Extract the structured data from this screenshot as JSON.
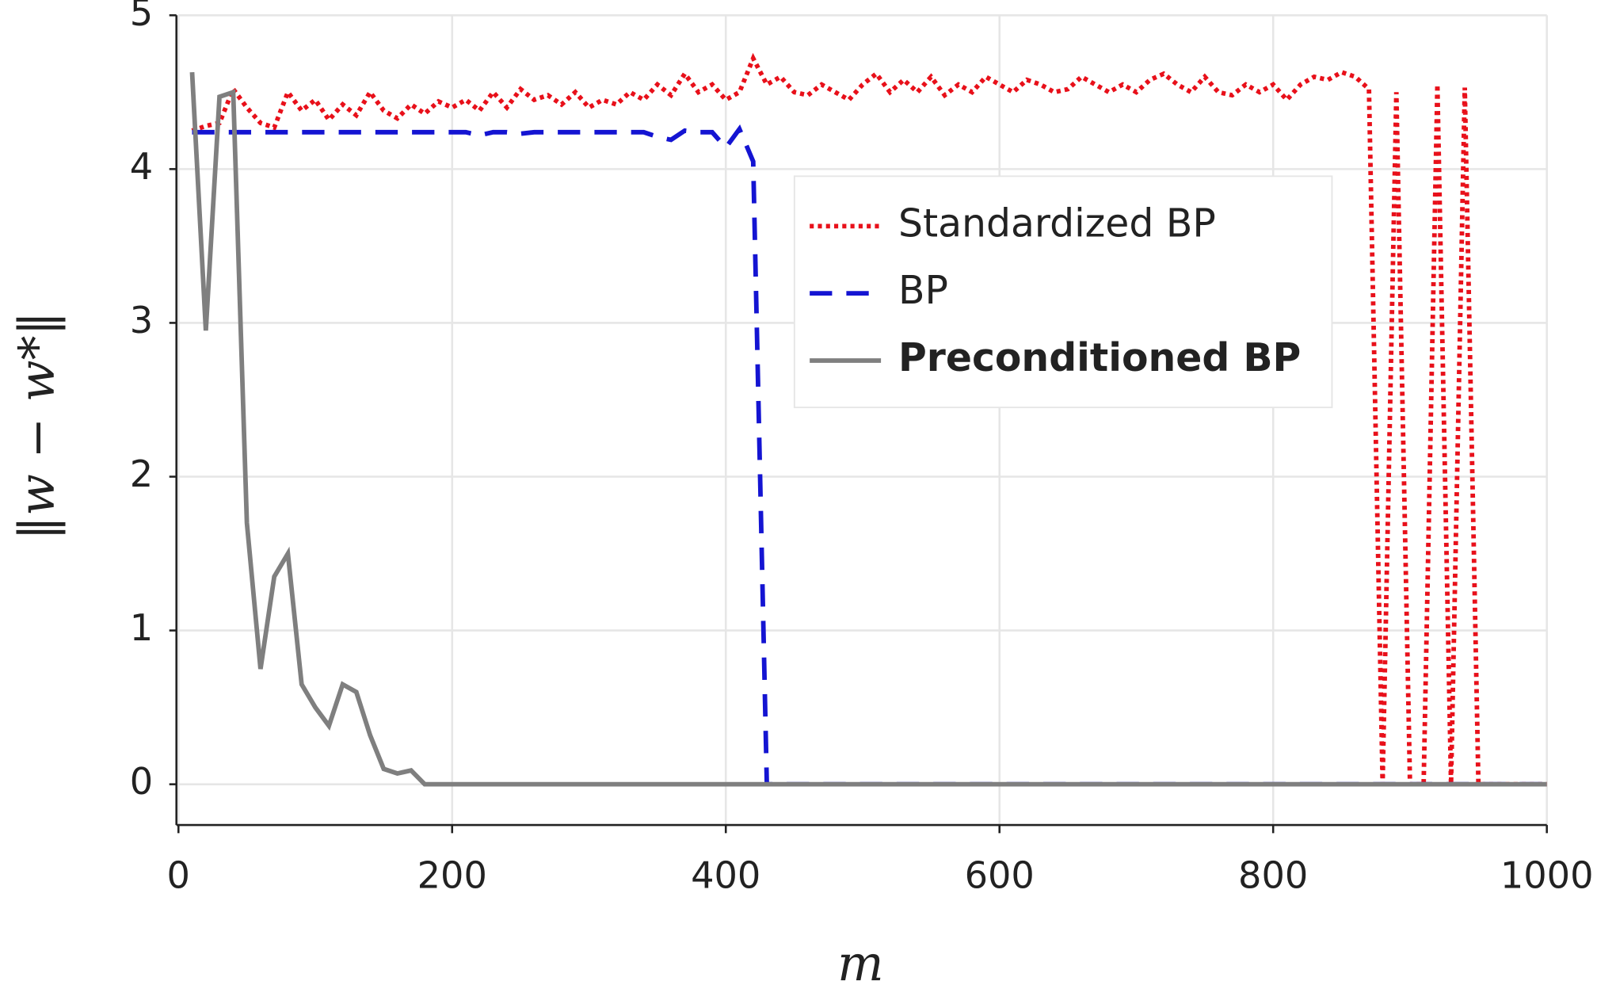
{
  "chart_data": {
    "type": "line",
    "xlabel": "m",
    "ylabel": "‖w − w*‖",
    "x": [
      10,
      20,
      30,
      40,
      50,
      60,
      70,
      80,
      90,
      100,
      110,
      120,
      130,
      140,
      150,
      160,
      170,
      180,
      190,
      200,
      210,
      220,
      230,
      240,
      250,
      260,
      270,
      280,
      290,
      300,
      310,
      320,
      330,
      340,
      350,
      360,
      370,
      380,
      390,
      400,
      410,
      420,
      430,
      440,
      450,
      460,
      470,
      480,
      490,
      500,
      510,
      520,
      530,
      540,
      550,
      560,
      570,
      580,
      590,
      600,
      610,
      620,
      630,
      640,
      650,
      660,
      670,
      680,
      690,
      700,
      710,
      720,
      730,
      740,
      750,
      760,
      770,
      780,
      790,
      800,
      810,
      820,
      830,
      840,
      850,
      860,
      870,
      880,
      890,
      900,
      910,
      920,
      930,
      940,
      950,
      960,
      970,
      980,
      990,
      1000
    ],
    "series": [
      {
        "name": "Standardized BP",
        "color": "#e8101a",
        "linestyle": "dotted",
        "values": [
          4.25,
          4.28,
          4.3,
          4.52,
          4.4,
          4.3,
          4.27,
          4.5,
          4.38,
          4.45,
          4.32,
          4.42,
          4.35,
          4.5,
          4.38,
          4.33,
          4.42,
          4.36,
          4.44,
          4.4,
          4.45,
          4.38,
          4.5,
          4.4,
          4.52,
          4.45,
          4.48,
          4.42,
          4.5,
          4.4,
          4.45,
          4.42,
          4.5,
          4.45,
          4.55,
          4.48,
          4.62,
          4.5,
          4.55,
          4.45,
          4.5,
          4.72,
          4.55,
          4.6,
          4.5,
          4.48,
          4.55,
          4.5,
          4.45,
          4.55,
          4.62,
          4.5,
          4.58,
          4.5,
          4.6,
          4.48,
          4.55,
          4.5,
          4.6,
          4.55,
          4.5,
          4.58,
          4.55,
          4.5,
          4.52,
          4.6,
          4.55,
          4.5,
          4.55,
          4.5,
          4.58,
          4.62,
          4.55,
          4.5,
          4.6,
          4.5,
          4.48,
          4.55,
          4.5,
          4.55,
          4.45,
          4.55,
          4.6,
          4.58,
          4.63,
          4.6,
          4.52,
          0,
          4.5,
          0,
          0,
          4.55,
          0,
          4.53,
          0,
          0,
          0,
          0,
          0,
          0
        ]
      },
      {
        "name": "BP",
        "color": "#1414d2",
        "linestyle": "dashed",
        "values": [
          4.24,
          4.24,
          4.24,
          4.24,
          4.24,
          4.24,
          4.24,
          4.24,
          4.24,
          4.24,
          4.24,
          4.24,
          4.24,
          4.24,
          4.24,
          4.24,
          4.24,
          4.24,
          4.24,
          4.24,
          4.24,
          4.22,
          4.24,
          4.24,
          4.23,
          4.24,
          4.24,
          4.24,
          4.24,
          4.24,
          4.24,
          4.24,
          4.24,
          4.24,
          4.21,
          4.19,
          4.25,
          4.24,
          4.24,
          4.14,
          4.26,
          4.05,
          0,
          0,
          0,
          0,
          0,
          0,
          0,
          0,
          0,
          0,
          0,
          0,
          0,
          0,
          0,
          0,
          0,
          0,
          0,
          0,
          0,
          0,
          0,
          0,
          0,
          0,
          0,
          0,
          0,
          0,
          0,
          0,
          0,
          0,
          0,
          0,
          0,
          0,
          0,
          0,
          0,
          0,
          0,
          0,
          0,
          0,
          0,
          0,
          0,
          0,
          0,
          0,
          0,
          0,
          0,
          0,
          0,
          0
        ]
      },
      {
        "name": "Preconditioned BP",
        "color": "#7f7f7f",
        "linestyle": "solid",
        "values": [
          4.63,
          2.95,
          4.47,
          4.5,
          1.7,
          0.75,
          1.35,
          1.5,
          0.65,
          0.5,
          0.38,
          0.65,
          0.6,
          0.32,
          0.1,
          0.07,
          0.09,
          0,
          0,
          0,
          0,
          0,
          0,
          0,
          0,
          0,
          0,
          0,
          0,
          0,
          0,
          0,
          0,
          0,
          0,
          0,
          0,
          0,
          0,
          0,
          0,
          0,
          0,
          0,
          0,
          0,
          0,
          0,
          0,
          0,
          0,
          0,
          0,
          0,
          0,
          0,
          0,
          0,
          0,
          0,
          0,
          0,
          0,
          0,
          0,
          0,
          0,
          0,
          0,
          0,
          0,
          0,
          0,
          0,
          0,
          0,
          0,
          0,
          0,
          0,
          0,
          0,
          0,
          0,
          0,
          0,
          0,
          0,
          0,
          0,
          0,
          0,
          0,
          0,
          0,
          0,
          0,
          0,
          0,
          0
        ]
      }
    ],
    "xlim": [
      0,
      1000
    ],
    "xticks": [
      0,
      200,
      400,
      600,
      800,
      1000
    ],
    "ylim": [
      0,
      5
    ],
    "yticks": [
      0,
      1,
      2,
      3,
      4,
      5
    ],
    "grid": true
  }
}
